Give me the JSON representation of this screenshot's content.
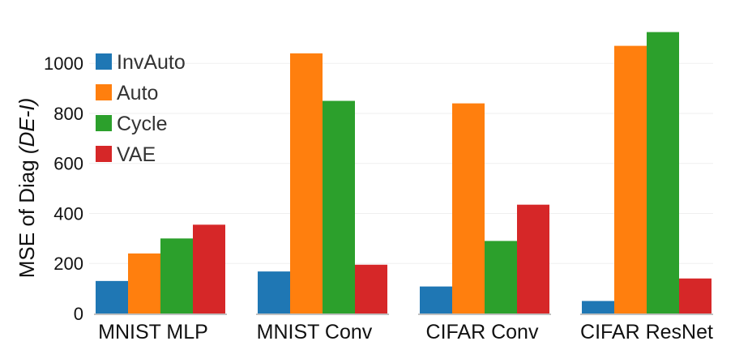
{
  "chart_data": {
    "type": "bar",
    "categories": [
      "MNIST MLP",
      "MNIST Conv",
      "CIFAR Conv",
      "CIFAR ResNet"
    ],
    "series": [
      {
        "name": "InvAuto",
        "color": "#1f77b4",
        "values": [
          130,
          168,
          108,
          50
        ]
      },
      {
        "name": "Auto",
        "color": "#ff7f0e",
        "values": [
          240,
          1040,
          840,
          1070
        ]
      },
      {
        "name": "Cycle",
        "color": "#2ca02c",
        "values": [
          300,
          850,
          290,
          1125
        ]
      },
      {
        "name": "VAE",
        "color": "#d62728",
        "values": [
          355,
          195,
          435,
          140
        ]
      }
    ],
    "ylabel_main": "MSE of Diag ",
    "ylabel_italic": "(DE-I)",
    "yticks": [
      0,
      200,
      400,
      600,
      800,
      1000
    ],
    "ylim": [
      0,
      1150
    ],
    "grid": true,
    "legend_position": "top-left"
  }
}
